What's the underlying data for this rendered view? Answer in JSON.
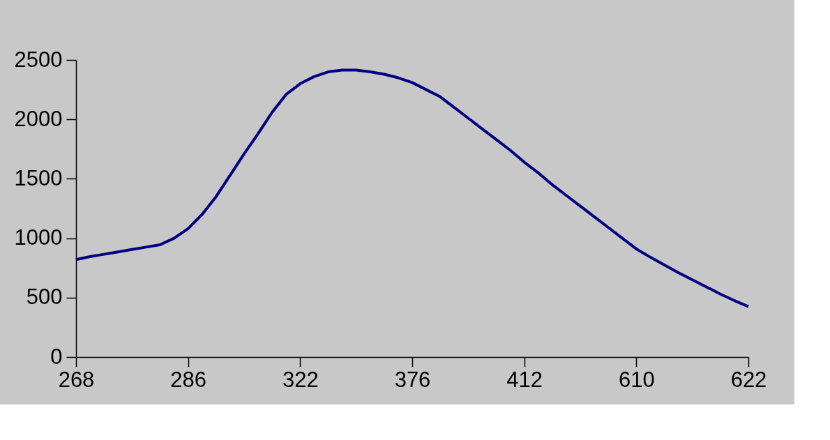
{
  "chart_data": {
    "type": "line",
    "categories": [
      "268",
      null,
      null,
      null,
      null,
      null,
      null,
      null,
      "286",
      null,
      null,
      null,
      null,
      null,
      null,
      null,
      "322",
      null,
      null,
      null,
      null,
      null,
      null,
      null,
      "376",
      null,
      null,
      null,
      null,
      null,
      null,
      null,
      "412",
      null,
      null,
      null,
      null,
      null,
      null,
      null,
      "610",
      null,
      null,
      null,
      null,
      null,
      null,
      null,
      "622"
    ],
    "series": [
      {
        "color": "#000080",
        "values": [
          820,
          845,
          865,
          885,
          905,
          925,
          945,
          1000,
          1080,
          1200,
          1350,
          1530,
          1710,
          1880,
          2060,
          2210,
          2300,
          2360,
          2400,
          2415,
          2415,
          2400,
          2380,
          2350,
          2310,
          2250,
          2190,
          2100,
          2010,
          1920,
          1830,
          1740,
          1640,
          1550,
          1450,
          1360,
          1270,
          1180,
          1090,
          1000,
          910,
          840,
          775,
          710,
          650,
          590,
          530,
          475,
          425
        ]
      }
    ],
    "ylim": [
      0,
      2500
    ],
    "yticks": [
      0,
      500,
      1000,
      1500,
      2000,
      2500
    ],
    "marker": "none",
    "line_style": "solid"
  }
}
